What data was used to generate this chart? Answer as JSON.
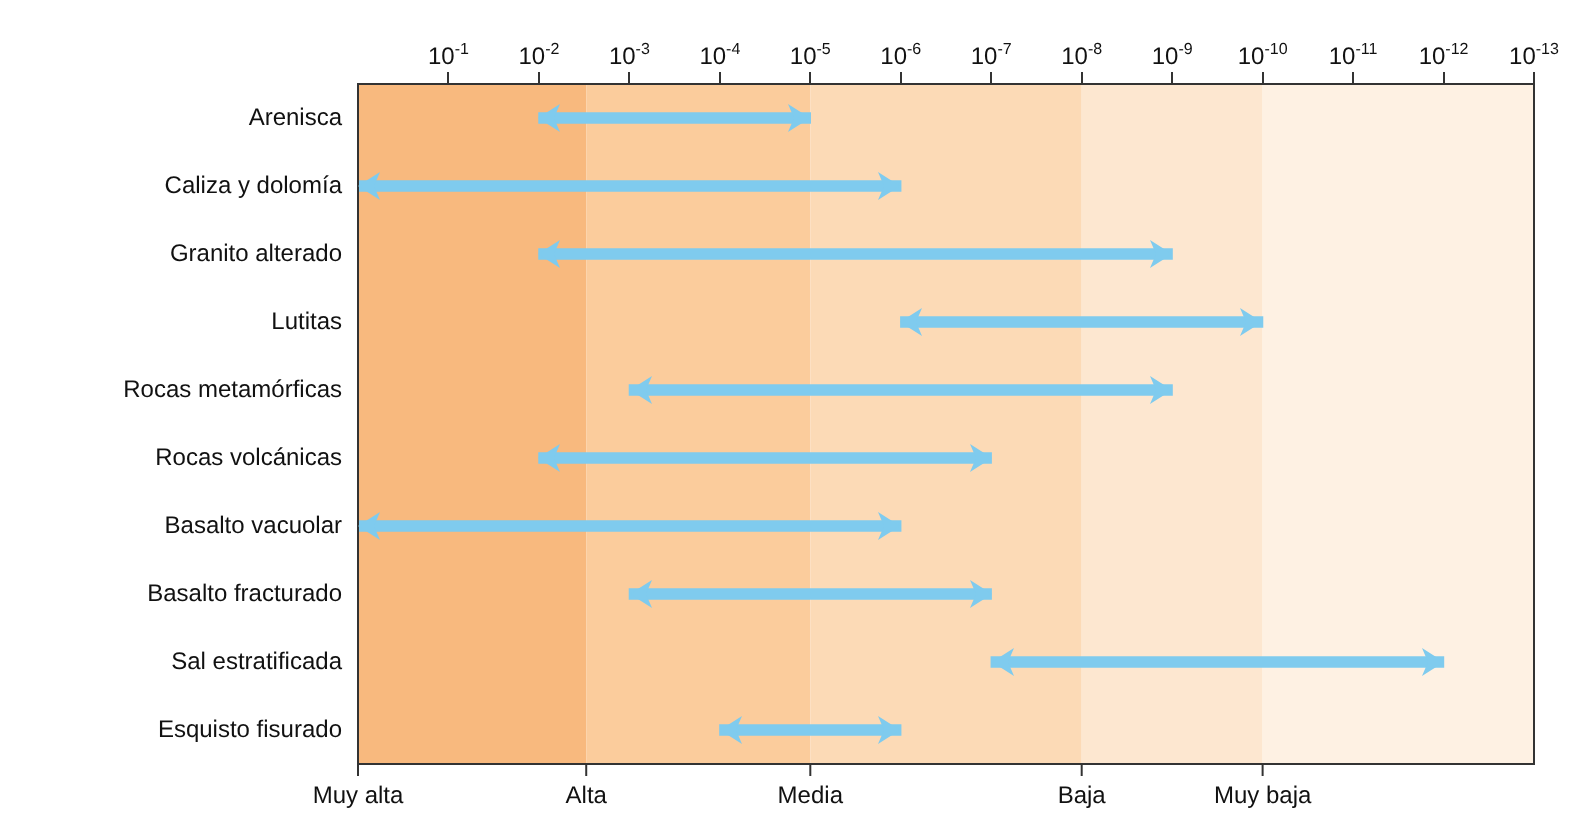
{
  "chart_data": {
    "type": "bar",
    "orientation": "horizontal",
    "log": "x",
    "grid": false,
    "legend": false,
    "categories": [
      "Arenisca",
      "Caliza y dolomía",
      "Granito alterado",
      "Lutitas",
      "Rocas metamórficas",
      "Rocas volcánicas",
      "Basalto vacuolar",
      "Basalto fracturado",
      "Sal estratificada",
      "Esquisto fisurado"
    ],
    "base": [
      0.01,
      1,
      0.01,
      1e-06,
      0.001,
      0.01,
      1,
      0.001,
      1e-07,
      0.0001
    ],
    "values": [
      -0.00999,
      -0.999999,
      -0.009999999,
      -9.999e-07,
      -0.000999999,
      -0.0099999,
      -0.999999,
      -0.0009999,
      -9.9999e-08,
      -9.9e-05
    ],
    "color": "#7fcbee",
    "xlim": [
      1,
      1e-13
    ],
    "xticks": [
      {
        "value": 0.1,
        "label": "10$^{-1}$"
      },
      {
        "value": 0.01,
        "label": "10$^{-2}$"
      },
      {
        "value": 0.001,
        "label": "10$^{-3}$"
      },
      {
        "value": 0.0001,
        "label": "10$^{-4}$"
      },
      {
        "value": 1e-05,
        "label": "10$^{-5}$"
      },
      {
        "value": 1e-06,
        "label": "10$^{-6}$"
      },
      {
        "value": 1e-07,
        "label": "10$^{-7}$"
      },
      {
        "value": 1e-08,
        "label": "10$^{-8}$"
      },
      {
        "value": 1e-09,
        "label": "10$^{-9}$"
      },
      {
        "value": 1e-10,
        "label": "10$^{-10}$"
      },
      {
        "value": 1e-11,
        "label": "10$^{-11}$"
      },
      {
        "value": 1e-12,
        "label": "10$^{-12}$"
      },
      {
        "value": 1e-13,
        "label": "10$^{-13}$"
      }
    ],
    "bands": [
      {
        "axis": "x",
        "from": 1,
        "to": 0.003,
        "color": "#f8b97e",
        "label": "Muy alta"
      },
      {
        "axis": "x",
        "from": 0.003,
        "to": 1e-05,
        "color": "#fbcc9c",
        "label": "Alta"
      },
      {
        "axis": "x",
        "from": 1e-05,
        "to": 1e-08,
        "color": "#fcdab6",
        "label": "Media"
      },
      {
        "axis": "x",
        "from": 1e-08,
        "to": 1e-10,
        "color": "#fde7d0",
        "label": "Baja"
      },
      {
        "axis": "x",
        "from": 1e-10,
        "to": 1e-13,
        "color": "#fef1e3",
        "label": "Muy baja"
      }
    ]
  }
}
